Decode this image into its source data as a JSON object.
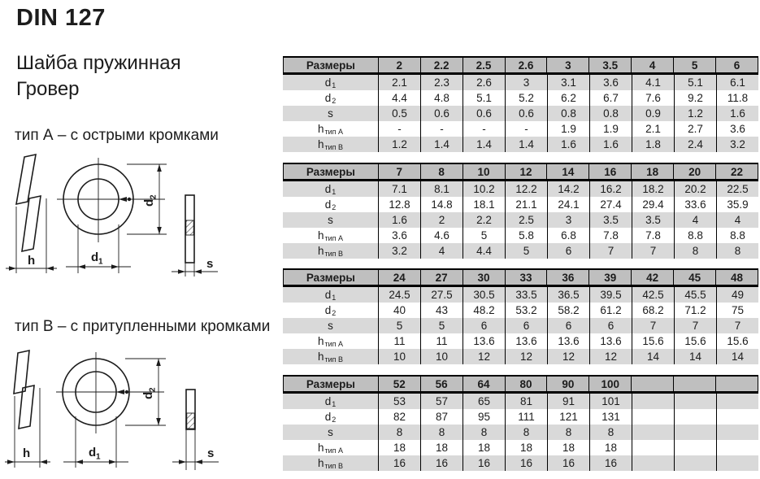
{
  "page": {
    "title": "DIN 127",
    "subtitle": [
      "Шайба пружинная",
      "Гровер"
    ],
    "type_a_caption": "тип А – с острыми кромками",
    "type_b_caption": "тип B – с притупленными кромками"
  },
  "diagram_labels": {
    "h": "h",
    "d_base": "d",
    "d1_sub": "1",
    "d2_sub": "2",
    "s": "s"
  },
  "colors": {
    "header_bg": "#bfbfbf",
    "row_alt_bg": "#d9d9d9",
    "border": "#000000",
    "text": "#1c1c1c"
  },
  "table_row_labels": [
    {
      "base": "d",
      "sub": "1"
    },
    {
      "base": "d",
      "sub": "2"
    },
    {
      "base": "s",
      "sub": ""
    },
    {
      "base": "h",
      "sub": "тип A"
    },
    {
      "base": "h",
      "sub": "тип B"
    }
  ],
  "tables": [
    {
      "header_label": "Размеры",
      "sizes": [
        "2",
        "2.2",
        "2.5",
        "2.6",
        "3",
        "3.5",
        "4",
        "5",
        "6"
      ],
      "rows": [
        [
          "2.1",
          "2.3",
          "2.6",
          "3",
          "3.1",
          "3.6",
          "4.1",
          "5.1",
          "6.1"
        ],
        [
          "4.4",
          "4.8",
          "5.1",
          "5.2",
          "6.2",
          "6.7",
          "7.6",
          "9.2",
          "11.8"
        ],
        [
          "0.5",
          "0.6",
          "0.6",
          "0.6",
          "0.8",
          "0.8",
          "0.9",
          "1.2",
          "1.6"
        ],
        [
          "-",
          "-",
          "-",
          "-",
          "1.9",
          "1.9",
          "2.1",
          "2.7",
          "3.6"
        ],
        [
          "1.2",
          "1.4",
          "1.4",
          "1.4",
          "1.6",
          "1.6",
          "1.8",
          "2.4",
          "3.2"
        ]
      ]
    },
    {
      "header_label": "Размеры",
      "sizes": [
        "7",
        "8",
        "10",
        "12",
        "14",
        "16",
        "18",
        "20",
        "22"
      ],
      "rows": [
        [
          "7.1",
          "8.1",
          "10.2",
          "12.2",
          "14.2",
          "16.2",
          "18.2",
          "20.2",
          "22.5"
        ],
        [
          "12.8",
          "14.8",
          "18.1",
          "21.1",
          "24.1",
          "27.4",
          "29.4",
          "33.6",
          "35.9"
        ],
        [
          "1.6",
          "2",
          "2.2",
          "2.5",
          "3",
          "3.5",
          "3.5",
          "4",
          "4"
        ],
        [
          "3.6",
          "4.6",
          "5",
          "5.8",
          "6.8",
          "7.8",
          "7.8",
          "8.8",
          "8.8"
        ],
        [
          "3.2",
          "4",
          "4.4",
          "5",
          "6",
          "7",
          "7",
          "8",
          "8"
        ]
      ]
    },
    {
      "header_label": "Размеры",
      "sizes": [
        "24",
        "27",
        "30",
        "33",
        "36",
        "39",
        "42",
        "45",
        "48"
      ],
      "rows": [
        [
          "24.5",
          "27.5",
          "30.5",
          "33.5",
          "36.5",
          "39.5",
          "42.5",
          "45.5",
          "49"
        ],
        [
          "40",
          "43",
          "48.2",
          "53.2",
          "58.2",
          "61.2",
          "68.2",
          "71.2",
          "75"
        ],
        [
          "5",
          "5",
          "6",
          "6",
          "6",
          "6",
          "7",
          "7",
          "7"
        ],
        [
          "11",
          "11",
          "13.6",
          "13.6",
          "13.6",
          "13.6",
          "15.6",
          "15.6",
          "15.6"
        ],
        [
          "10",
          "10",
          "12",
          "12",
          "12",
          "12",
          "14",
          "14",
          "14"
        ]
      ]
    },
    {
      "header_label": "Размеры",
      "sizes": [
        "52",
        "56",
        "64",
        "80",
        "90",
        "100",
        "",
        "",
        ""
      ],
      "rows": [
        [
          "53",
          "57",
          "65",
          "81",
          "91",
          "101",
          "",
          "",
          ""
        ],
        [
          "82",
          "87",
          "95",
          "111",
          "121",
          "131",
          "",
          "",
          ""
        ],
        [
          "8",
          "8",
          "8",
          "8",
          "8",
          "8",
          "",
          "",
          ""
        ],
        [
          "18",
          "18",
          "18",
          "18",
          "18",
          "18",
          "",
          "",
          ""
        ],
        [
          "16",
          "16",
          "16",
          "16",
          "16",
          "16",
          "",
          "",
          ""
        ]
      ]
    }
  ]
}
